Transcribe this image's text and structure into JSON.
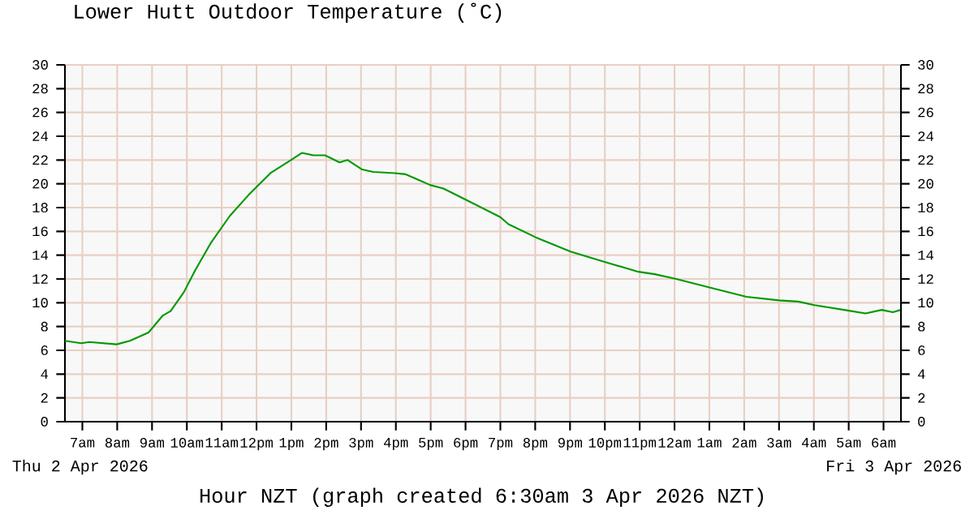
{
  "chart_data": {
    "type": "line",
    "title": "Lower Hutt Outdoor Temperature (˚C)",
    "xlabel": "Hour NZT (graph created 6:30am 3 Apr 2026 NZT)",
    "annotations": [
      "Thu 2 Apr 2026",
      "Fri 3 Apr 2026"
    ],
    "x": [
      "2026-04-02T06:30",
      "2026-04-02T06:58",
      "2026-04-02T07:12",
      "2026-04-02T07:59",
      "2026-04-02T08:22",
      "2026-04-02T08:54",
      "2026-04-02T09:18",
      "2026-04-02T09:32",
      "2026-04-02T09:55",
      "2026-04-02T10:14",
      "2026-04-02T10:41",
      "2026-04-02T11:14",
      "2026-04-02T11:47",
      "2026-04-02T12:24",
      "2026-04-02T12:56",
      "2026-04-02T13:18",
      "2026-04-02T13:38",
      "2026-04-02T13:58",
      "2026-04-02T14:23",
      "2026-04-02T14:37",
      "2026-04-02T15:02",
      "2026-04-02T15:21",
      "2026-04-02T15:58",
      "2026-04-02T16:17",
      "2026-04-02T16:59",
      "2026-04-02T17:22",
      "2026-04-02T17:59",
      "2026-04-02T19:00",
      "2026-04-02T19:14",
      "2026-04-02T20:01",
      "2026-04-02T21:01",
      "2026-04-02T22:02",
      "2026-04-02T22:58",
      "2026-04-02T23:26",
      "2026-04-03T00:03",
      "2026-04-03T00:59",
      "2026-04-03T02:04",
      "2026-04-03T03:00",
      "2026-04-03T03:33",
      "2026-04-03T04:01",
      "2026-04-03T04:52",
      "2026-04-03T05:29",
      "2026-04-03T05:57",
      "2026-04-03T06:16",
      "2026-04-03T06:30"
    ],
    "series": [
      {
        "color": "#009900",
        "values": [
          6.8,
          6.6,
          6.7,
          6.5,
          6.8,
          7.5,
          8.9,
          9.3,
          10.9,
          12.7,
          15.0,
          17.3,
          19.1,
          20.9,
          21.9,
          22.6,
          22.4,
          22.4,
          21.8,
          22.0,
          21.2,
          21.0,
          20.9,
          20.8,
          19.9,
          19.6,
          18.7,
          17.2,
          16.6,
          15.5,
          14.3,
          13.4,
          12.6,
          12.4,
          12.0,
          11.3,
          10.5,
          10.2,
          10.1,
          9.8,
          9.4,
          9.1,
          9.4,
          9.2,
          9.4
        ]
      }
    ],
    "xlim": [
      "2026-04-02T06:30",
      "2026-04-03T06:30"
    ],
    "xticks": [
      {
        "value": "2026-04-02T07:00",
        "label": "7am"
      },
      {
        "value": "2026-04-02T08:00",
        "label": "8am"
      },
      {
        "value": "2026-04-02T09:00",
        "label": "9am"
      },
      {
        "value": "2026-04-02T10:00",
        "label": "10am"
      },
      {
        "value": "2026-04-02T11:00",
        "label": "11am"
      },
      {
        "value": "2026-04-02T12:00",
        "label": "12pm"
      },
      {
        "value": "2026-04-02T13:00",
        "label": "1pm"
      },
      {
        "value": "2026-04-02T14:00",
        "label": "2pm"
      },
      {
        "value": "2026-04-02T15:00",
        "label": "3pm"
      },
      {
        "value": "2026-04-02T16:00",
        "label": "4pm"
      },
      {
        "value": "2026-04-02T17:00",
        "label": "5pm"
      },
      {
        "value": "2026-04-02T18:00",
        "label": "6pm"
      },
      {
        "value": "2026-04-02T19:00",
        "label": "7pm"
      },
      {
        "value": "2026-04-02T20:00",
        "label": "8pm"
      },
      {
        "value": "2026-04-02T21:00",
        "label": "9pm"
      },
      {
        "value": "2026-04-02T22:00",
        "label": "10pm"
      },
      {
        "value": "2026-04-02T23:00",
        "label": "11pm"
      },
      {
        "value": "2026-04-03T00:00",
        "label": "12am"
      },
      {
        "value": "2026-04-03T01:00",
        "label": "1am"
      },
      {
        "value": "2026-04-03T02:00",
        "label": "2am"
      },
      {
        "value": "2026-04-03T03:00",
        "label": "3am"
      },
      {
        "value": "2026-04-03T04:00",
        "label": "4am"
      },
      {
        "value": "2026-04-03T05:00",
        "label": "5am"
      },
      {
        "value": "2026-04-03T06:00",
        "label": "6am"
      }
    ],
    "ylim": [
      0,
      30
    ],
    "yticks": [
      0,
      2,
      4,
      6,
      8,
      10,
      12,
      14,
      16,
      18,
      20,
      22,
      24,
      26,
      28,
      30
    ],
    "y2lim": [
      0,
      30
    ],
    "y2ticks": [
      0,
      2,
      4,
      6,
      8,
      10,
      12,
      14,
      16,
      18,
      20,
      22,
      24,
      26,
      28,
      30
    ],
    "grid": true,
    "marker": "none",
    "line_style": "solid"
  }
}
